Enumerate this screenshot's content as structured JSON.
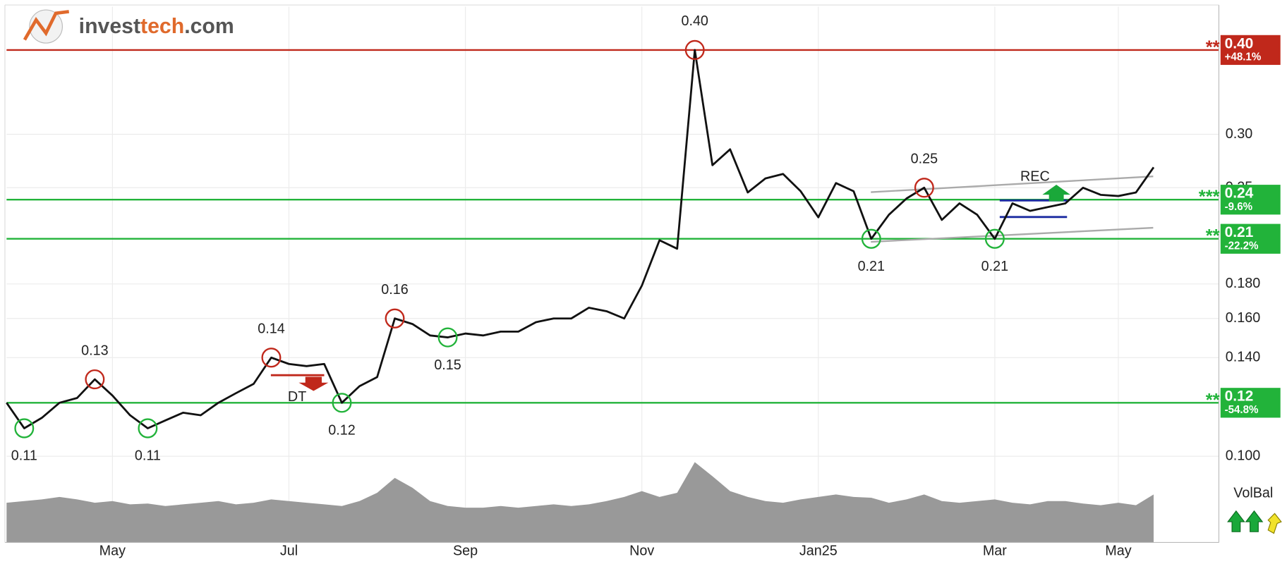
{
  "chart_data": {
    "type": "line",
    "brand": [
      "invest",
      "tech",
      ".com"
    ],
    "categories": [
      null,
      null,
      null,
      null,
      null,
      null,
      "May",
      null,
      null,
      null,
      null,
      null,
      null,
      null,
      null,
      null,
      "Jul",
      null,
      null,
      null,
      null,
      null,
      null,
      null,
      null,
      null,
      "Sep",
      null,
      null,
      null,
      null,
      null,
      null,
      null,
      null,
      null,
      "Nov",
      null,
      null,
      null,
      null,
      null,
      null,
      null,
      null,
      null,
      "Jan25",
      null,
      null,
      null,
      null,
      null,
      null,
      null,
      null,
      null,
      "Mar",
      null,
      null,
      null,
      null,
      null,
      null,
      "May",
      null,
      null
    ],
    "series": [
      {
        "color": "#111111",
        "values": [
          0.12,
          0.11,
          0.114,
          0.12,
          0.122,
          0.13,
          0.123,
          0.115,
          0.11,
          0.113,
          0.116,
          0.115,
          0.12,
          0.124,
          0.128,
          0.14,
          0.137,
          0.136,
          0.137,
          0.12,
          0.127,
          0.131,
          0.16,
          0.157,
          0.151,
          0.15,
          0.152,
          0.151,
          0.153,
          0.153,
          0.158,
          0.16,
          0.16,
          0.166,
          0.164,
          0.16,
          0.179,
          0.209,
          0.203,
          0.4,
          0.27,
          0.285,
          0.246,
          0.258,
          0.262,
          0.247,
          0.226,
          0.254,
          0.247,
          0.21,
          0.228,
          0.241,
          0.25,
          0.224,
          0.237,
          0.228,
          0.21,
          0.237,
          0.231,
          0.234,
          0.237,
          0.25,
          0.244,
          0.243,
          0.246,
          0.268
        ],
        "value_labels": [
          null,
          "0.11",
          null,
          null,
          null,
          "0.13",
          null,
          null,
          "0.11",
          null,
          null,
          null,
          null,
          null,
          null,
          "0.14",
          null,
          null,
          null,
          "0.12",
          null,
          null,
          "0.16",
          null,
          null,
          "0.15",
          null,
          null,
          null,
          null,
          null,
          null,
          null,
          null,
          null,
          null,
          null,
          null,
          null,
          "0.40",
          null,
          null,
          null,
          null,
          null,
          null,
          null,
          null,
          null,
          "0.21",
          null,
          null,
          "0.25",
          null,
          null,
          null,
          "0.21",
          null,
          null,
          null,
          null,
          null,
          null,
          null,
          null,
          null
        ]
      }
    ],
    "volume": {
      "color": "#999999",
      "vlim": [
        0,
        100
      ],
      "values": [
        48,
        50,
        52,
        55,
        52,
        48,
        50,
        46,
        47,
        44,
        46,
        48,
        50,
        46,
        48,
        52,
        50,
        48,
        46,
        44,
        50,
        60,
        78,
        66,
        50,
        44,
        42,
        42,
        44,
        42,
        44,
        46,
        44,
        46,
        50,
        55,
        62,
        55,
        60,
        97,
        80,
        62,
        55,
        50,
        48,
        52,
        55,
        58,
        55,
        54,
        48,
        52,
        58,
        50,
        48,
        50,
        52,
        48,
        46,
        50,
        50,
        47,
        45,
        48,
        45,
        58
      ]
    },
    "log_scale": true,
    "ylim": [
      0.0745,
      0.4638
    ],
    "yticks": [
      {
        "value": 0.1,
        "label": "0.100"
      },
      {
        "value": 0.14,
        "label": "0.140"
      },
      {
        "value": 0.16,
        "label": "0.160"
      },
      {
        "value": 0.18,
        "label": "0.180"
      },
      0.25,
      {
        "value": 0.3,
        "label": "0.30"
      }
    ],
    "grid": true,
    "levels": [
      {
        "value": 0.4,
        "label": "0.40",
        "change": "+48.1%",
        "stars": "**",
        "color": "#c0281b"
      },
      {
        "value": 0.24,
        "label": "0.24",
        "change": "-9.6%",
        "stars": "***",
        "color": "#22b33a"
      },
      {
        "value": 0.21,
        "label": "0.21",
        "change": "-22.2%",
        "stars": "**",
        "color": "#22b33a"
      },
      {
        "value": 0.12,
        "label": "0.12",
        "change": "-54.8%",
        "stars": "**",
        "color": "#22b33a"
      }
    ],
    "high_color": "#c0281b",
    "low_color": "#22b33a",
    "annotations": [
      "DT",
      "REC"
    ],
    "indicator": "VolBal"
  }
}
